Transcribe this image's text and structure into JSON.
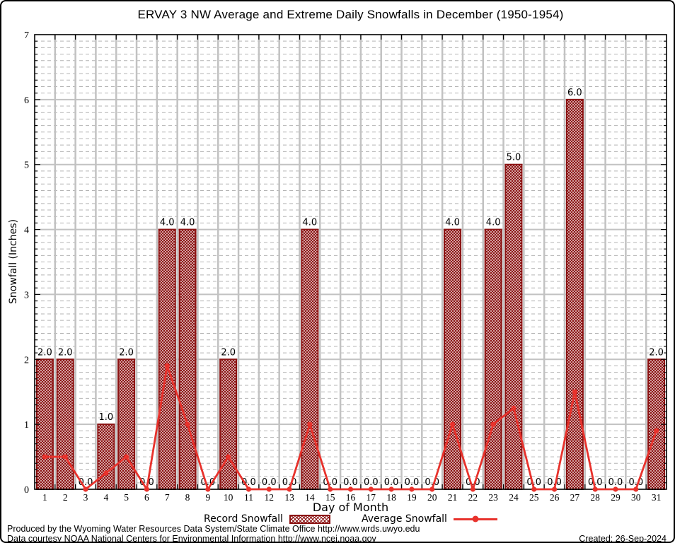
{
  "colors": {
    "bar": "#8b1212",
    "line": "#e8322c",
    "grid_major": "#c2c2c2",
    "grid_minor": "#b4b4b4",
    "axis": "#000000",
    "background": "#ffffff",
    "label_text": "#000000"
  },
  "footer": {
    "produced": "Produced by the Wyoming Water Resources Data System/State Climate Office http://www.wrds.uwyo.edu",
    "courtesy": "Data courtesy NOAA National Centers for Environmental Information http://www.ncei.noaa.gov",
    "created": "Created: 26-Sep-2024"
  },
  "chart_data": {
    "type": "bar",
    "title": "ERVAY 3 NW Average and Extreme Daily Snowfalls in December (1950-1954)",
    "xlabel": "Day of Month",
    "ylabel": "Snowfall (Inches)",
    "ylim": [
      0,
      7
    ],
    "y_major_step": 1,
    "y_minor_step": 0.1,
    "grid": true,
    "legend_position": "bottom",
    "categories": [
      1,
      2,
      3,
      4,
      5,
      6,
      7,
      8,
      9,
      10,
      11,
      12,
      13,
      14,
      15,
      16,
      17,
      18,
      19,
      20,
      21,
      22,
      23,
      24,
      25,
      26,
      27,
      28,
      29,
      30,
      31
    ],
    "series": [
      {
        "name": "Record Snowfall",
        "type": "bar",
        "bar_labels": true,
        "label_decimals": 1,
        "values": [
          2.0,
          2.0,
          0.0,
          1.0,
          2.0,
          0.0,
          4.0,
          4.0,
          0.0,
          2.0,
          0.0,
          0.0,
          0.0,
          4.0,
          0.0,
          0.0,
          0.0,
          0.0,
          0.0,
          0.0,
          4.0,
          0.0,
          4.0,
          5.0,
          0.0,
          0.0,
          6.0,
          0.0,
          0.0,
          0.0,
          2.0
        ]
      },
      {
        "name": "Average Snowfall",
        "type": "line",
        "values": [
          0.5,
          0.5,
          0.0,
          0.25,
          0.5,
          0.0,
          1.9,
          1.0,
          0.0,
          0.5,
          0.0,
          0.0,
          0.0,
          1.0,
          0.0,
          0.0,
          0.0,
          0.0,
          0.0,
          0.0,
          1.0,
          0.0,
          1.0,
          1.25,
          0.0,
          0.0,
          1.5,
          0.0,
          0.0,
          0.0,
          0.9
        ]
      }
    ]
  }
}
